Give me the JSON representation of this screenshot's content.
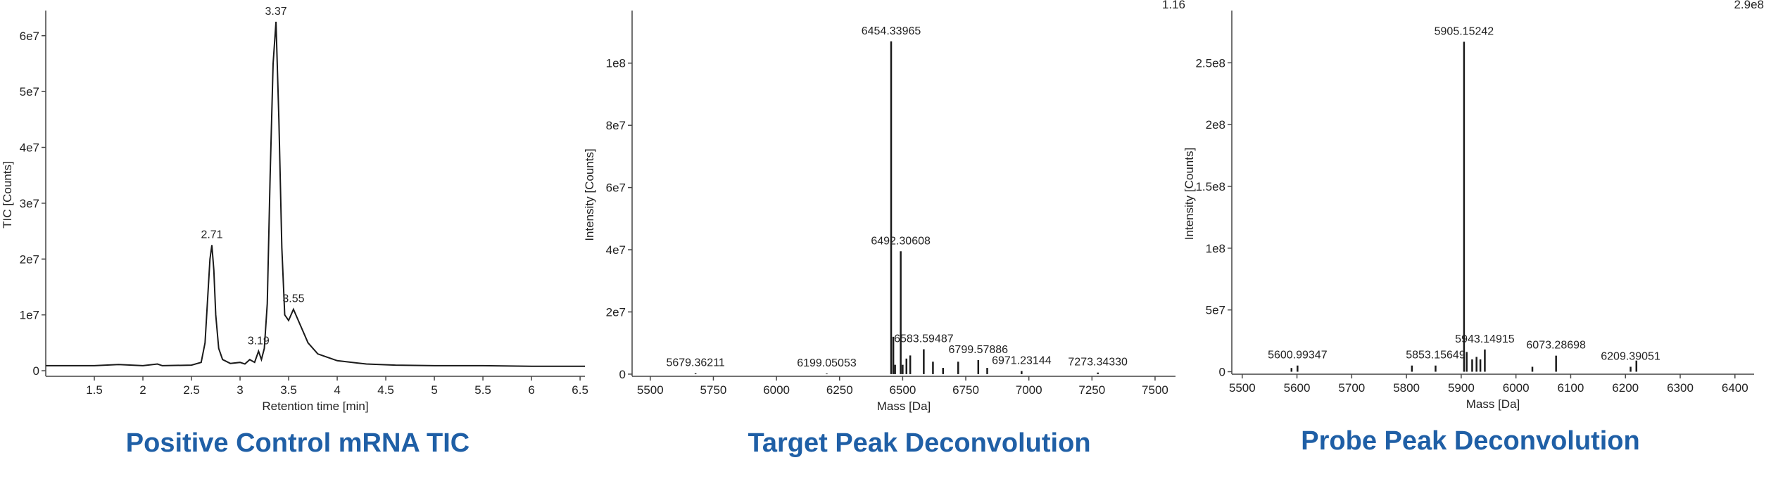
{
  "chart_data": [
    {
      "type": "line",
      "title": "Positive Control mRNA TIC",
      "x_label": "Retention time [min]",
      "y_label": "TIC [Counts]",
      "color": "#1a1a1a",
      "x": [
        1.0,
        1.5,
        1.75,
        2.0,
        2.15,
        2.2,
        2.5,
        2.6,
        2.64,
        2.67,
        2.69,
        2.71,
        2.73,
        2.75,
        2.78,
        2.82,
        2.9,
        3.0,
        3.05,
        3.1,
        3.15,
        3.19,
        3.22,
        3.25,
        3.28,
        3.31,
        3.34,
        3.37,
        3.4,
        3.43,
        3.46,
        3.5,
        3.55,
        3.6,
        3.7,
        3.8,
        4.0,
        4.3,
        4.6,
        5.0,
        5.5,
        6.0,
        6.55
      ],
      "values": [
        900000,
        900000,
        1100000,
        900000,
        1200000,
        900000,
        1000000,
        1500000,
        5000000,
        14000000,
        20000000,
        22500000,
        18000000,
        10000000,
        4000000,
        2000000,
        1300000,
        1500000,
        1200000,
        2000000,
        1500000,
        3500000,
        2000000,
        4000000,
        12000000,
        35000000,
        55000000,
        62500000,
        45000000,
        22000000,
        10000000,
        9000000,
        11000000,
        9000000,
        5000000,
        3000000,
        1800000,
        1200000,
        1000000,
        900000,
        900000,
        800000,
        800000
      ],
      "xlim": [
        1.0,
        6.55
      ],
      "ylim": [
        -1000000,
        64000000
      ],
      "xticks": [
        1.5,
        2,
        2.5,
        3,
        3.5,
        4,
        4.5,
        5,
        5.5,
        6,
        6.5
      ],
      "yticks": [
        0,
        {
          "value": 10000000,
          "label": "1e7"
        },
        {
          "value": 20000000,
          "label": "2e7"
        },
        {
          "value": 30000000,
          "label": "3e7"
        },
        {
          "value": 40000000,
          "label": "4e7"
        },
        {
          "value": 50000000,
          "label": "5e7"
        },
        {
          "value": 60000000,
          "label": "6e7"
        }
      ],
      "annotations": [
        {
          "x": 2.71,
          "y": 22500000
        },
        {
          "x": 3.19,
          "y": 3500000
        },
        {
          "x": 3.37,
          "y": 62500000
        },
        {
          "x": 3.55,
          "y": 11000000
        }
      ]
    },
    {
      "type": "stem",
      "title": "Target Peak Deconvolution",
      "x_label": "Mass [Da]",
      "y_label": "Intensity [Counts]",
      "color": "#1a1a1a",
      "corner_label": "1.16",
      "x": [
        5679.36211,
        6199.05053,
        6454.33965,
        6463,
        6470,
        6492.30608,
        6500,
        6515,
        6530,
        6583.59487,
        6620,
        6660,
        6720,
        6799.57886,
        6835,
        6971.23144,
        7273.3433
      ],
      "values": [
        300000,
        200000,
        107000000,
        12000000,
        3000000,
        39500000,
        3000000,
        5000000,
        6000000,
        8000000,
        4000000,
        2000000,
        4000000,
        4500000,
        2000000,
        1000000,
        500000
      ],
      "xlim": [
        5428,
        7581
      ],
      "ylim": [
        -700000,
        116000000
      ],
      "xticks": [
        5500,
        5750,
        6000,
        6250,
        6500,
        6750,
        7000,
        7250,
        7500
      ],
      "yticks": [
        0,
        {
          "value": 20000000,
          "label": "2e7"
        },
        {
          "value": 40000000,
          "label": "4e7"
        },
        {
          "value": 60000000,
          "label": "6e7"
        },
        {
          "value": 80000000,
          "label": "8e7"
        },
        {
          "value": 100000000,
          "label": "1e8"
        }
      ],
      "annotations": [
        {
          "x": 5679.36211,
          "y": 300000,
          "label": "5679.36211"
        },
        {
          "x": 6199.05053,
          "y": 200000,
          "label": "6199.05053"
        },
        {
          "x": 6454.33965,
          "y": 107000000,
          "label": "6454.33965"
        },
        {
          "x": 6492.30608,
          "y": 39500000,
          "label": "6492.30608"
        },
        {
          "x": 6583.59487,
          "y": 8000000,
          "label": "6583.59487"
        },
        {
          "x": 6799.57886,
          "y": 4500000,
          "label": "6799.57886"
        },
        {
          "x": 6971.23144,
          "y": 1000000,
          "label": "6971.23144"
        },
        {
          "x": 7273.3433,
          "y": 500000,
          "label": "7273.34330"
        }
      ]
    },
    {
      "type": "stem",
      "title": "Probe Peak Deconvolution",
      "x_label": "Mass [Da]",
      "y_label": "Intensity [Counts]",
      "color": "#1a1a1a",
      "corner_label": "2.9e8",
      "x": [
        5590,
        5600.99347,
        5810,
        5853.15649,
        5905.15242,
        5910,
        5920,
        5928,
        5935,
        5943.14915,
        6030,
        6073.28698,
        6209.39051,
        6220
      ],
      "values": [
        3000000,
        5000000,
        5000000,
        5000000,
        267000000,
        16000000,
        10000000,
        12000000,
        10000000,
        18000000,
        4000000,
        13000000,
        4000000,
        9000000
      ],
      "xlim": [
        5481,
        6435
      ],
      "ylim": [
        -2000000,
        290000000
      ],
      "xticks": [
        5500,
        5600,
        5700,
        5800,
        5900,
        6000,
        6100,
        6200,
        6300,
        6400
      ],
      "yticks": [
        0,
        {
          "value": 50000000,
          "label": "5e7"
        },
        {
          "value": 100000000,
          "label": "1e8"
        },
        {
          "value": 150000000,
          "label": "1.5e8"
        },
        {
          "value": 200000000,
          "label": "2e8"
        },
        {
          "value": 250000000,
          "label": "2.5e8"
        }
      ],
      "annotations": [
        {
          "x": 5600.99347,
          "y": 5000000,
          "label": "5600.99347"
        },
        {
          "x": 5853.15649,
          "y": 5000000,
          "label": "5853.15649"
        },
        {
          "x": 5905.15242,
          "y": 267000000,
          "label": "5905.15242"
        },
        {
          "x": 5943.14915,
          "y": 18000000,
          "label": "5943.14915"
        },
        {
          "x": 6073.28698,
          "y": 13000000,
          "label": "6073.28698"
        },
        {
          "x": 6209.39051,
          "y": 4000000,
          "label": "6209.39051"
        }
      ]
    }
  ]
}
